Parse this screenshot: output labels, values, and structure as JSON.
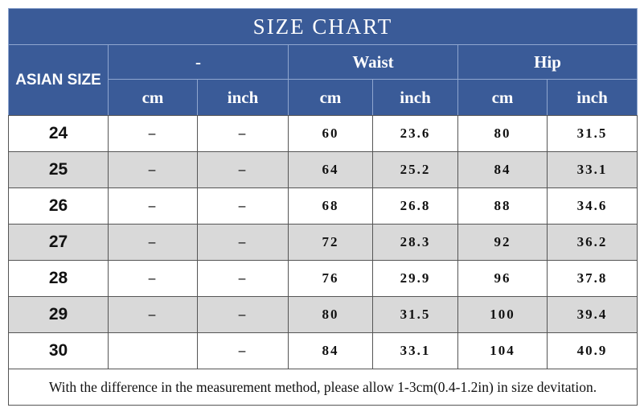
{
  "header": {
    "title": "SIZE CHART",
    "size_label": "ASIAN SIZE",
    "groups": [
      "-",
      "Waist",
      "Hip"
    ],
    "units": [
      "cm",
      "inch",
      "cm",
      "inch",
      "cm",
      "inch"
    ]
  },
  "rows": [
    [
      "24",
      "–",
      "–",
      "60",
      "23.6",
      "80",
      "31.5"
    ],
    [
      "25",
      "–",
      "–",
      "64",
      "25.2",
      "84",
      "33.1"
    ],
    [
      "26",
      "–",
      "–",
      "68",
      "26.8",
      "88",
      "34.6"
    ],
    [
      "27",
      "–",
      "–",
      "72",
      "28.3",
      "92",
      "36.2"
    ],
    [
      "28",
      "–",
      "–",
      "76",
      "29.9",
      "96",
      "37.8"
    ],
    [
      "29",
      "–",
      "–",
      "80",
      "31.5",
      "100",
      "39.4"
    ],
    [
      "30",
      null,
      "–",
      "84",
      "33.1",
      "104",
      "40.9"
    ]
  ],
  "footer": "With the difference in the measurement method, please allow 1-3cm(0.4-1.2in) in size devitation."
}
